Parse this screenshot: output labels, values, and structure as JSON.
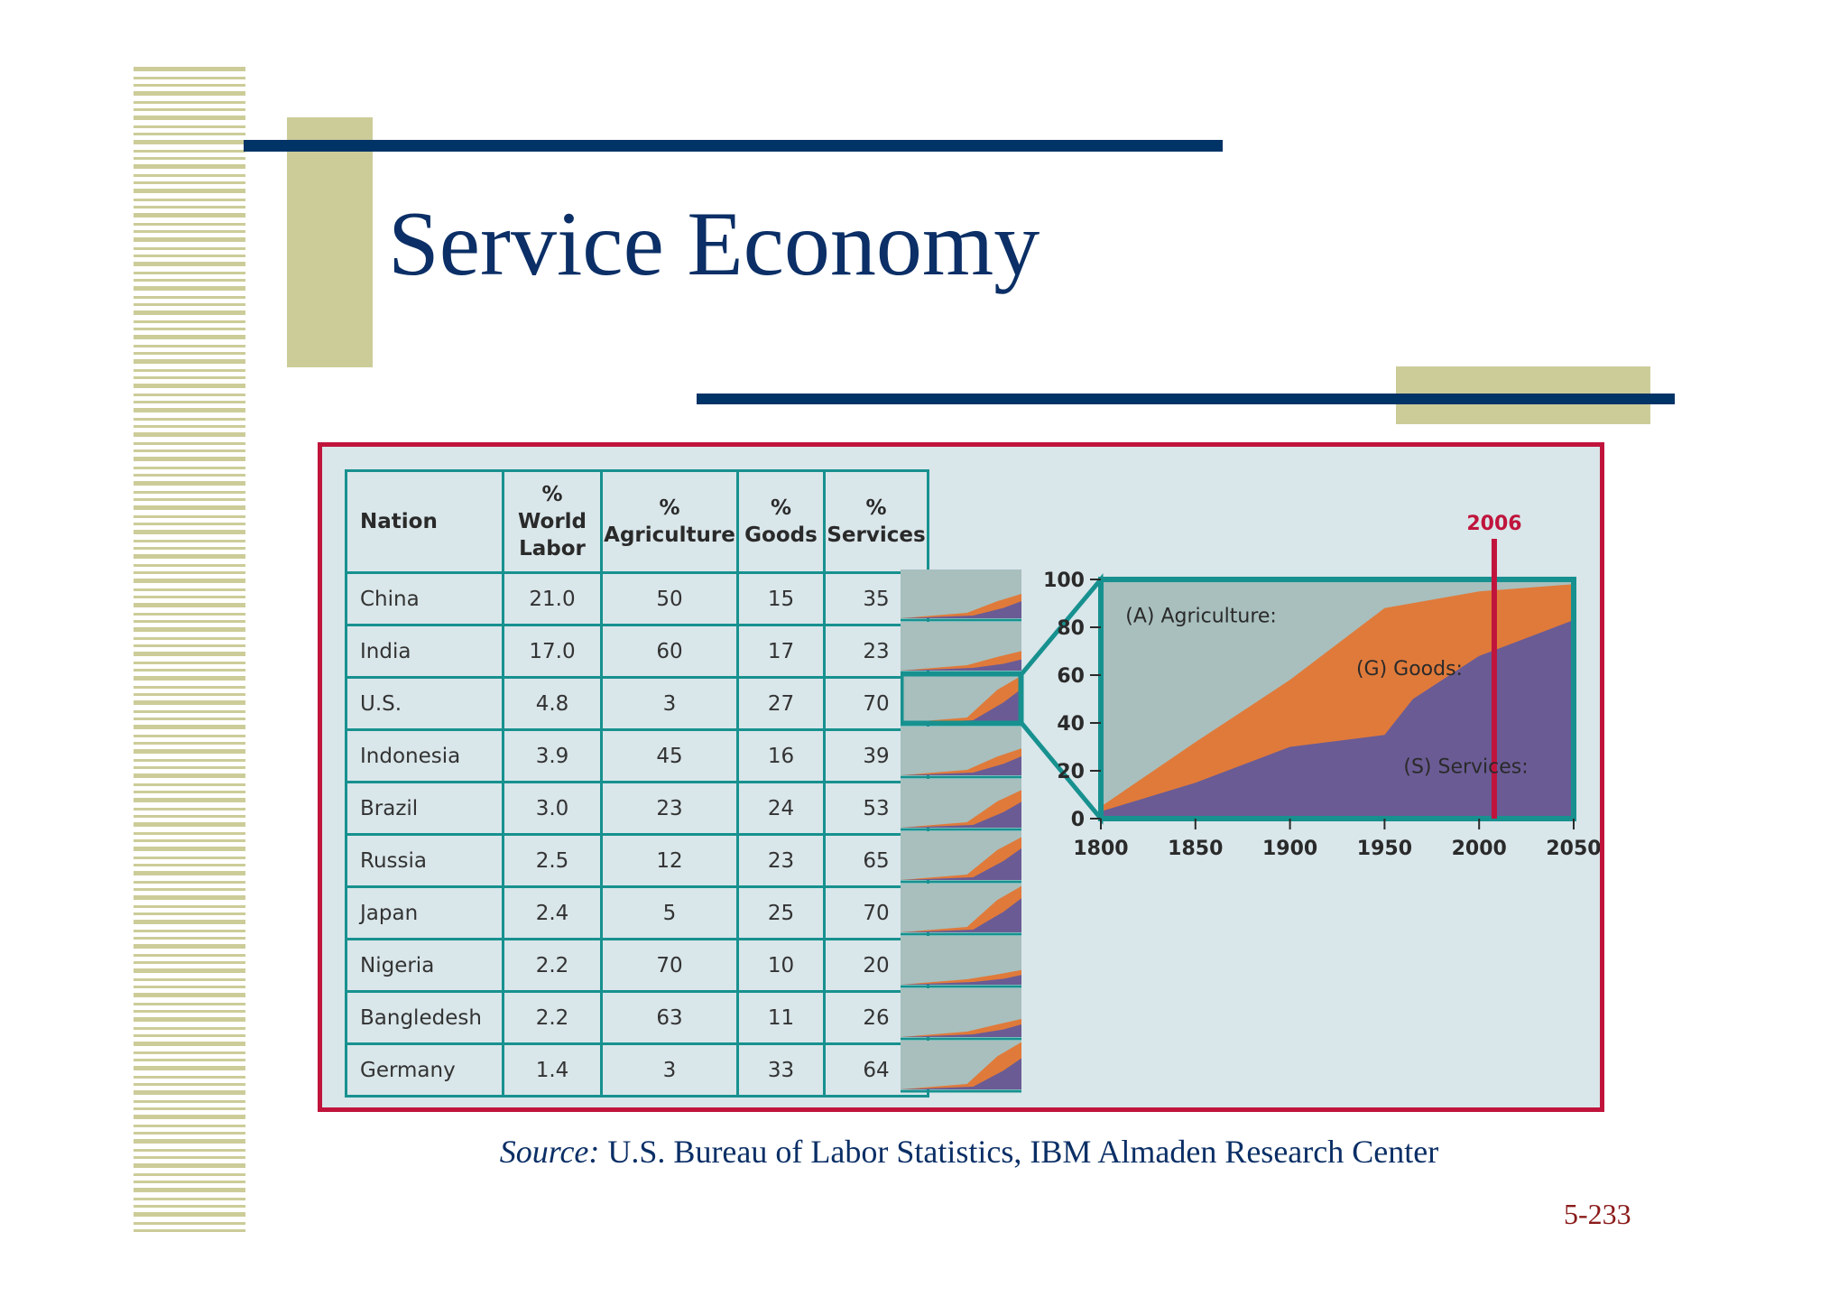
{
  "slide": {
    "title": "Service Economy",
    "source_label": "Source:",
    "source_text": " U.S. Bureau of Labor Statistics, IBM Almaden Research Center",
    "page_number": "5-233"
  },
  "colors": {
    "navy": "#003366",
    "olive": "#cccc99",
    "frame_red": "#c0143c",
    "teal": "#17918f",
    "agriculture": "#a8bfbd",
    "goods": "#e07a3a",
    "services": "#6a5b94",
    "highlight_year": "#c0143c"
  },
  "table": {
    "headers": [
      "Nation",
      "% World Labor",
      "% Agriculture",
      "% Goods",
      "% Services"
    ],
    "header_lines": [
      [
        "Nation"
      ],
      [
        "%",
        "World",
        "Labor"
      ],
      [
        "%",
        "Agriculture"
      ],
      [
        "%",
        "Goods"
      ],
      [
        "%",
        "Services"
      ]
    ],
    "rows": [
      {
        "nation": "China",
        "world_labor": "21.0",
        "agriculture": "50",
        "goods": "15",
        "services": "35"
      },
      {
        "nation": "India",
        "world_labor": "17.0",
        "agriculture": "60",
        "goods": "17",
        "services": "23"
      },
      {
        "nation": "U.S.",
        "world_labor": "4.8",
        "agriculture": "3",
        "goods": "27",
        "services": "70"
      },
      {
        "nation": "Indonesia",
        "world_labor": "3.9",
        "agriculture": "45",
        "goods": "16",
        "services": "39"
      },
      {
        "nation": "Brazil",
        "world_labor": "3.0",
        "agriculture": "23",
        "goods": "24",
        "services": "53"
      },
      {
        "nation": "Russia",
        "world_labor": "2.5",
        "agriculture": "12",
        "goods": "23",
        "services": "65"
      },
      {
        "nation": "Japan",
        "world_labor": "2.4",
        "agriculture": "5",
        "goods": "25",
        "services": "70"
      },
      {
        "nation": "Nigeria",
        "world_labor": "2.2",
        "agriculture": "70",
        "goods": "10",
        "services": "20"
      },
      {
        "nation": "Bangledesh",
        "world_labor": "2.2",
        "agriculture": "63",
        "goods": "11",
        "services": "26"
      },
      {
        "nation": "Germany",
        "world_labor": "1.4",
        "agriculture": "3",
        "goods": "33",
        "services": "64"
      }
    ]
  },
  "chart_data": {
    "type": "area",
    "title": "",
    "xlabel": "",
    "ylabel": "",
    "x": [
      1800,
      1850,
      1900,
      1950,
      2006,
      2050
    ],
    "xticks": [
      "1800",
      "1850",
      "1900",
      "1950",
      "2000",
      "2050"
    ],
    "yticks": [
      "0",
      "20",
      "40",
      "60",
      "80",
      "100"
    ],
    "xlim": [
      1800,
      2050
    ],
    "ylim": [
      0,
      100
    ],
    "highlight_year": "2006",
    "highlight_x": 2008,
    "series": [
      {
        "name": "(S) Services:",
        "label_x": 1960,
        "label_y": 19,
        "points": [
          [
            1800,
            3
          ],
          [
            1850,
            15
          ],
          [
            1900,
            30
          ],
          [
            1950,
            35
          ],
          [
            1965,
            50
          ],
          [
            2000,
            68
          ],
          [
            2050,
            83
          ]
        ]
      },
      {
        "name": "(G) Goods:",
        "label_x": 1935,
        "label_y": 60,
        "points": [
          [
            1800,
            5
          ],
          [
            1850,
            32
          ],
          [
            1900,
            58
          ],
          [
            1950,
            88
          ],
          [
            2000,
            95
          ],
          [
            2050,
            98
          ]
        ]
      },
      {
        "name": "(A) Agriculture:",
        "label_x": 1813,
        "label_y": 82,
        "points": [
          [
            1800,
            100
          ],
          [
            2050,
            100
          ]
        ]
      }
    ],
    "grid": false,
    "legend": "inline labels"
  }
}
